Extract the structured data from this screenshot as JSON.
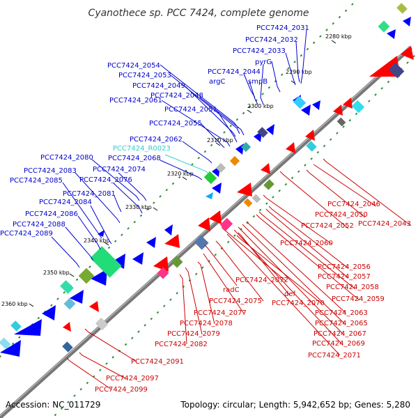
{
  "title": "Cyanothece sp. PCC 7424, complete genome",
  "footer": {
    "accession": "Accession: NC_011729",
    "summary": "Topology: circular; Length: 5,942,652 bp; Genes: 5,280"
  },
  "colors": {
    "forward_label": "#0000cc",
    "reverse_label": "#cc0000",
    "rna_label": "#33cccc",
    "backbone": "#777777",
    "forward_gene": "#0000ff",
    "reverse_gene": "#ff0000",
    "gc_dots": "#2e8b2e"
  },
  "ticks": [
    {
      "label": "2280 kbp"
    },
    {
      "label": "2290 kbp"
    },
    {
      "label": "2300 kbp"
    },
    {
      "label": "2310 kbp"
    },
    {
      "label": "2320 kbp"
    },
    {
      "label": "2330 kbp"
    },
    {
      "label": "2340 kbp"
    },
    {
      "label": "2350 kbp"
    },
    {
      "label": "2360 kbp"
    }
  ],
  "forward_labels": [
    {
      "text": "PCC7424_2031"
    },
    {
      "text": "PCC7424_2032"
    },
    {
      "text": "PCC7424_2033"
    },
    {
      "text": "pyrG"
    },
    {
      "text": "smpB"
    },
    {
      "text": "argC"
    },
    {
      "text": "PCC7424_2044"
    },
    {
      "text": "PCC7424_2054"
    },
    {
      "text": "PCC7424_2053"
    },
    {
      "text": "PCC7424_2049"
    },
    {
      "text": "PCC7424_2048"
    },
    {
      "text": "PCC7424_2061"
    },
    {
      "text": "PCC7424_2051"
    },
    {
      "text": "PCC7424_2055"
    },
    {
      "text": "PCC7424_2062"
    },
    {
      "text": "PCC7424_R0023"
    },
    {
      "text": "PCC7424_2068"
    },
    {
      "text": "PCC7424_2080"
    },
    {
      "text": "PCC7424_2074"
    },
    {
      "text": "PCC7424_2083"
    },
    {
      "text": "PCC7424_2076"
    },
    {
      "text": "PCC7424_2085"
    },
    {
      "text": "PCC7424_2081"
    },
    {
      "text": "PCC7424_2084"
    },
    {
      "text": "PCC7424_2086"
    },
    {
      "text": "PCC7424_2088"
    },
    {
      "text": "PCC7424_2089"
    }
  ],
  "reverse_labels": [
    {
      "text": "PCC7424_2046"
    },
    {
      "text": "PCC7424_2050"
    },
    {
      "text": "PCC7424_2052"
    },
    {
      "text": "PCC7424_2043"
    },
    {
      "text": "PCC7424_2060"
    },
    {
      "text": "PCC7424_2056"
    },
    {
      "text": "PCC7424_2057"
    },
    {
      "text": "PCC7424_2072"
    },
    {
      "text": "PCC7424_2058"
    },
    {
      "text": "radC"
    },
    {
      "text": "def"
    },
    {
      "text": "PCC7424_2059"
    },
    {
      "text": "PCC7424_2075"
    },
    {
      "text": "PCC7424_2070"
    },
    {
      "text": "PCC7424_2077"
    },
    {
      "text": "PCC7424_2063"
    },
    {
      "text": "PCC7424_2078"
    },
    {
      "text": "PCC7424_2065"
    },
    {
      "text": "PCC7424_2079"
    },
    {
      "text": "PCC7424_2067"
    },
    {
      "text": "PCC7424_2082"
    },
    {
      "text": "PCC7424_2069"
    },
    {
      "text": "PCC7424_2071"
    },
    {
      "text": "PCC7424_2091"
    },
    {
      "text": "PCC7424_2097"
    },
    {
      "text": "PCC7424_2099"
    }
  ]
}
